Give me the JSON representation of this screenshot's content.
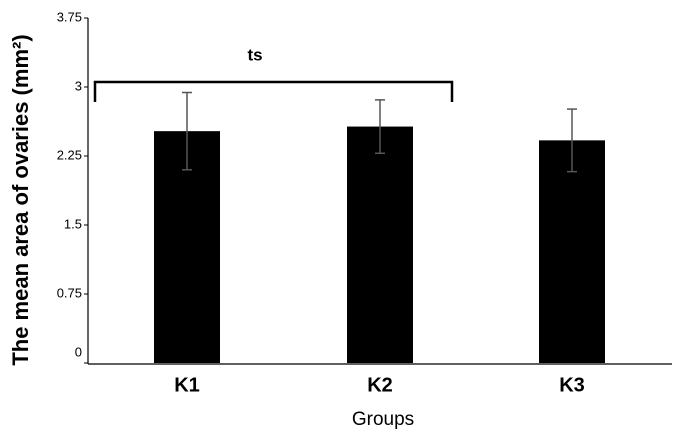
{
  "chart_data": {
    "type": "bar",
    "y_label": "The mean area of ovaries (mm²)",
    "x_label": "Groups",
    "annotation": "ts",
    "categories": [
      "K1",
      "K2",
      "K3"
    ],
    "values": [
      2.52,
      2.57,
      2.42
    ],
    "errors": [
      0.42,
      0.29,
      0.34
    ],
    "color": "#000000",
    "ylim": [
      0,
      3.75
    ],
    "yticks": [
      0,
      0.75,
      1.5,
      2.25,
      3,
      3.75
    ],
    "grid": false
  }
}
